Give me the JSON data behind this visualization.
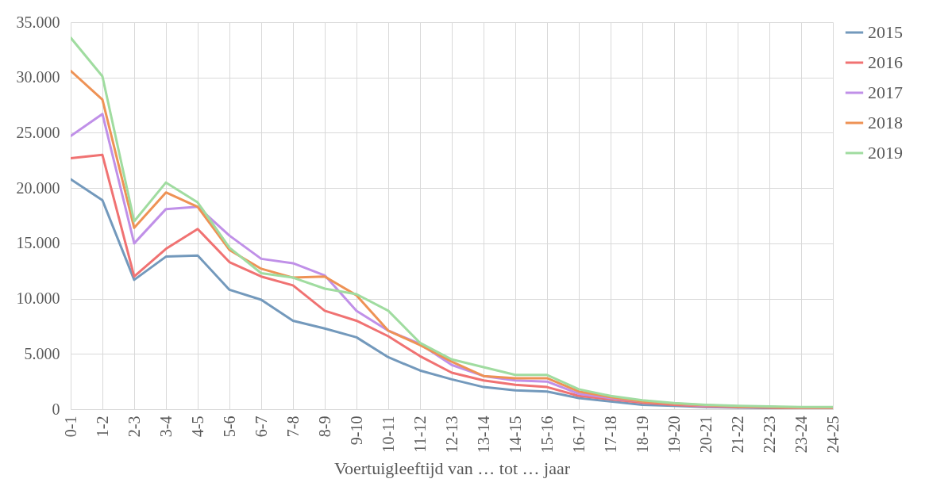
{
  "chart_data": {
    "type": "line",
    "xlabel": "Voertuigleeftijd van … tot … jaar",
    "categories": [
      "0-1",
      "1-2",
      "2-3",
      "3-4",
      "4-5",
      "5-6",
      "6-7",
      "7-8",
      "8-9",
      "9-10",
      "10-11",
      "11-12",
      "12-13",
      "13-14",
      "14-15",
      "15-16",
      "16-17",
      "17-18",
      "18-19",
      "19-20",
      "20-21",
      "21-22",
      "22-23",
      "23-24",
      "24-25"
    ],
    "series": [
      {
        "name": "2015",
        "color": "#7399bc",
        "values": [
          20800,
          18900,
          11700,
          13800,
          13900,
          10800,
          9900,
          8000,
          7300,
          6500,
          4700,
          3500,
          2700,
          2000,
          1700,
          1600,
          1000,
          700,
          400,
          300,
          200,
          150,
          100,
          100,
          100
        ]
      },
      {
        "name": "2016",
        "color": "#f07272",
        "values": [
          22700,
          23000,
          12000,
          14500,
          16300,
          13300,
          12000,
          11200,
          8900,
          8000,
          6600,
          4800,
          3300,
          2600,
          2200,
          2000,
          1200,
          900,
          600,
          400,
          250,
          200,
          150,
          100,
          100
        ]
      },
      {
        "name": "2017",
        "color": "#c090e8",
        "values": [
          24700,
          26700,
          15000,
          18100,
          18300,
          15700,
          13600,
          13200,
          12100,
          8900,
          7100,
          5900,
          4000,
          3000,
          2600,
          2500,
          1400,
          1000,
          700,
          500,
          300,
          250,
          200,
          150,
          150
        ]
      },
      {
        "name": "2018",
        "color": "#ee9255",
        "values": [
          30600,
          28000,
          16400,
          19600,
          18300,
          14400,
          12700,
          11900,
          12000,
          10300,
          7100,
          5800,
          4300,
          3000,
          2800,
          2800,
          1600,
          1100,
          700,
          500,
          350,
          250,
          200,
          150,
          150
        ]
      },
      {
        "name": "2019",
        "color": "#a0dca0",
        "values": [
          33600,
          30100,
          17000,
          20500,
          18700,
          14600,
          12300,
          11900,
          10900,
          10400,
          8900,
          6000,
          4500,
          3800,
          3100,
          3100,
          1800,
          1200,
          800,
          550,
          400,
          300,
          250,
          200,
          200
        ]
      }
    ],
    "ylim": [
      0,
      35000
    ],
    "yticks": [
      0,
      {
        "value": 5000,
        "label": "5.000"
      },
      {
        "value": 10000,
        "label": "10.000"
      },
      {
        "value": 15000,
        "label": "15.000"
      },
      {
        "value": 20000,
        "label": "20.000"
      },
      {
        "value": 25000,
        "label": "25.000"
      },
      {
        "value": 30000,
        "label": "30.000"
      },
      {
        "value": 35000,
        "label": "35.000"
      }
    ],
    "grid": true,
    "legend": "right",
    "marker": "none",
    "line_style": "solid"
  }
}
